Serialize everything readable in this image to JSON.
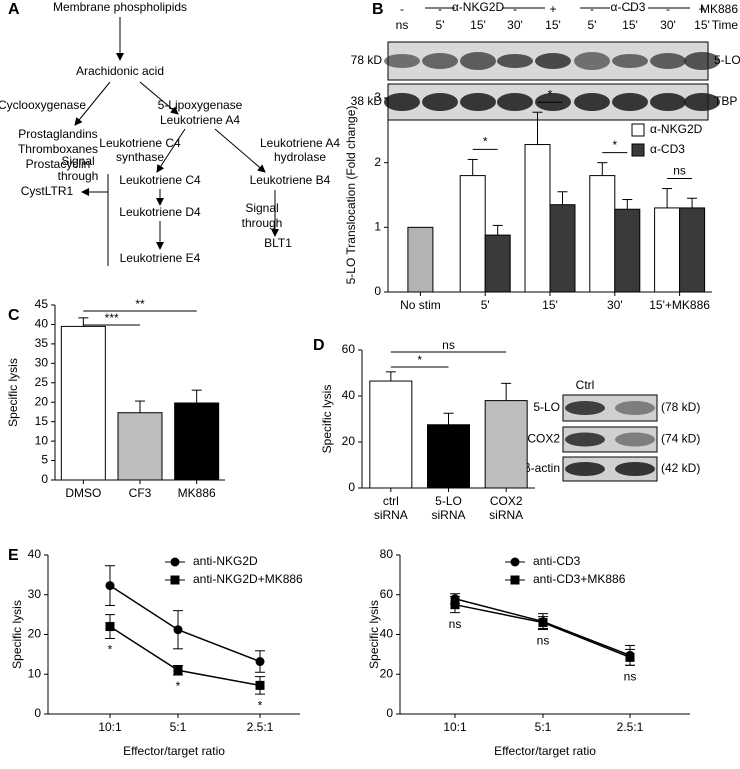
{
  "panel_labels": [
    "A",
    "B",
    "C",
    "D",
    "E"
  ],
  "diagram": {
    "texts": [
      "Membrane phospholipids",
      "Arachidonic acid",
      "Cyclooxygenase",
      "5-Lipoxygenase",
      "Prostaglandins",
      "Thromboxanes",
      "Prostacyclin",
      "Leukotriene A4",
      "Leukotriene C4",
      "synthase",
      "Leukotriene A4",
      "hydrolase",
      "Leukotriene C4",
      "Leukotriene B4",
      "Signal",
      "through",
      "CystLTR1",
      "Leukotriene D4",
      "Signal",
      "through",
      "BLT1",
      "Leukotriene E4"
    ]
  },
  "blot_B": {
    "groups": [
      "α-NKG2D",
      "α-CD3"
    ],
    "treatment_label": "MK886",
    "treatment": [
      "-",
      "-",
      "-",
      "-",
      "+",
      "-",
      "-",
      "-",
      "+"
    ],
    "time_label": "Time",
    "times": [
      "ns",
      "5'",
      "15'",
      "30'",
      "15'",
      "5'",
      "15'",
      "30'",
      "15'"
    ],
    "rows": [
      {
        "size": "78 kD",
        "protein": "5-LO"
      },
      {
        "size": "38 kD",
        "protein": "TBP"
      }
    ]
  },
  "blot_D": {
    "lane_label": "Ctrl",
    "rows": [
      {
        "protein": "5-LO",
        "size": "(78 kD)"
      },
      {
        "protein": "COX2",
        "size": "(74 kD)"
      },
      {
        "protein": "β-actin",
        "size": "(42 kD)"
      }
    ]
  },
  "chart_data": [
    {
      "type": "bar",
      "ylabel": "5-LO Translocation (Fold change)",
      "categories": [
        "No stim",
        "5'",
        "15'",
        "30'",
        "15'+MK886"
      ],
      "reference_bar": {
        "value": 1,
        "color": "#b3b3b3"
      },
      "series": [
        {
          "name": "α-NKG2D",
          "color": "#ffffff",
          "values": [
            null,
            1.8,
            2.28,
            1.8,
            1.3
          ],
          "errors": [
            null,
            0.25,
            0.5,
            0.2,
            0.3
          ]
        },
        {
          "name": "α-CD3",
          "color": "#3a3a3a",
          "values": [
            null,
            0.88,
            1.35,
            1.28,
            1.3
          ],
          "errors": [
            null,
            0.15,
            0.2,
            0.15,
            0.15
          ]
        }
      ],
      "annotations": [
        "*",
        "*",
        "*",
        "ns"
      ],
      "ylim": [
        0,
        3
      ],
      "yticks": [
        0,
        1,
        2,
        3
      ],
      "legend": "upper right"
    },
    {
      "type": "bar",
      "ylabel": "Specific lysis",
      "categories": [
        [
          "DMSO"
        ],
        [
          "CF3"
        ],
        [
          "MK886"
        ]
      ],
      "values": [
        39.5,
        17.3,
        19.8
      ],
      "errors": [
        2.2,
        3,
        3.3
      ],
      "colors": [
        "#ffffff",
        "#bdbdbd",
        "#000000"
      ],
      "annotations": [
        "***",
        "**"
      ],
      "ylim": [
        0,
        45
      ],
      "yticks": [
        0,
        5,
        10,
        15,
        20,
        25,
        30,
        35,
        40,
        45
      ]
    },
    {
      "type": "bar",
      "ylabel": "Specific lysis",
      "categories": [
        [
          "ctrl",
          "siRNA"
        ],
        [
          "5-LO",
          "siRNA"
        ],
        [
          "COX2",
          "siRNA"
        ]
      ],
      "values": [
        46.5,
        27.5,
        38
      ],
      "errors": [
        4,
        5,
        7.5
      ],
      "colors": [
        "#ffffff",
        "#000000",
        "#bdbdbd"
      ],
      "annotations": [
        "*",
        "ns"
      ],
      "ylim": [
        0,
        60
      ],
      "yticks": [
        0,
        20,
        40,
        60
      ]
    },
    {
      "type": "line",
      "ylabel": "Specific lysis",
      "xlabel": "Effector/target ratio",
      "categories": [
        "10:1",
        "5:1",
        "2.5:1"
      ],
      "series": [
        {
          "name": "anti-NKG2D",
          "color": "#000000",
          "marker": "circle",
          "values": [
            32.3,
            21.2,
            13.2
          ],
          "errors": [
            5,
            4.8,
            2.7
          ]
        },
        {
          "name": "anti-NKG2D+MK886",
          "color": "#000000",
          "marker": "square",
          "values": [
            22,
            11,
            7.2
          ],
          "errors": [
            3,
            1.2,
            2.2
          ]
        }
      ],
      "annotations": [
        "*",
        "*",
        "*"
      ],
      "ylim": [
        0,
        40
      ],
      "yticks": [
        0,
        10,
        20,
        30,
        40
      ]
    },
    {
      "type": "line",
      "ylabel": "Specific lysis",
      "xlabel": "Effector/target ratio",
      "categories": [
        "10:1",
        "5:1",
        "2.5:1"
      ],
      "series": [
        {
          "name": "anti-CD3",
          "color": "#000000",
          "marker": "circle",
          "values": [
            58,
            46.5,
            29.5
          ],
          "errors": [
            2.5,
            4,
            5
          ]
        },
        {
          "name": "anti-CD3+MK886",
          "color": "#000000",
          "marker": "square",
          "values": [
            55,
            46,
            28.5
          ],
          "errors": [
            4,
            3,
            4
          ]
        }
      ],
      "annotations": [
        "ns",
        "ns",
        "ns"
      ],
      "ylim": [
        0,
        80
      ],
      "yticks": [
        0,
        20,
        40,
        60,
        80
      ]
    }
  ]
}
